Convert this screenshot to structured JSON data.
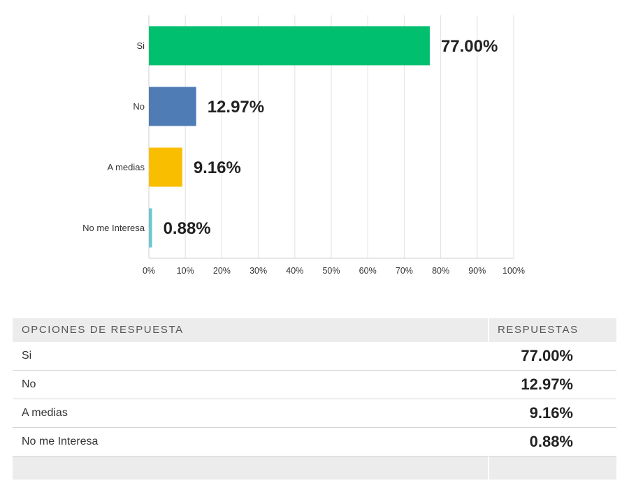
{
  "chart_data": {
    "type": "bar",
    "orientation": "horizontal",
    "categories": [
      "Si",
      "No",
      "A medias",
      "No me Interesa"
    ],
    "values": [
      77.0,
      12.97,
      9.16,
      0.88
    ],
    "value_labels": [
      "77.00%",
      "12.97%",
      "9.16%",
      "0.88%"
    ],
    "colors": [
      "#00bf6f",
      "#507cb6",
      "#f9be00",
      "#6bc8cd"
    ],
    "xlim": [
      0,
      100
    ],
    "x_ticks": [
      "0%",
      "10%",
      "20%",
      "30%",
      "40%",
      "50%",
      "60%",
      "70%",
      "80%",
      "90%",
      "100%"
    ],
    "grid": true
  },
  "table": {
    "headers": {
      "option": "OPCIONES DE RESPUESTA",
      "responses": "RESPUESTAS"
    },
    "rows": [
      {
        "option": "Si",
        "value": "77.00%"
      },
      {
        "option": "No",
        "value": "12.97%"
      },
      {
        "option": "A medias",
        "value": "9.16%"
      },
      {
        "option": "No me Interesa",
        "value": "0.88%"
      }
    ]
  }
}
